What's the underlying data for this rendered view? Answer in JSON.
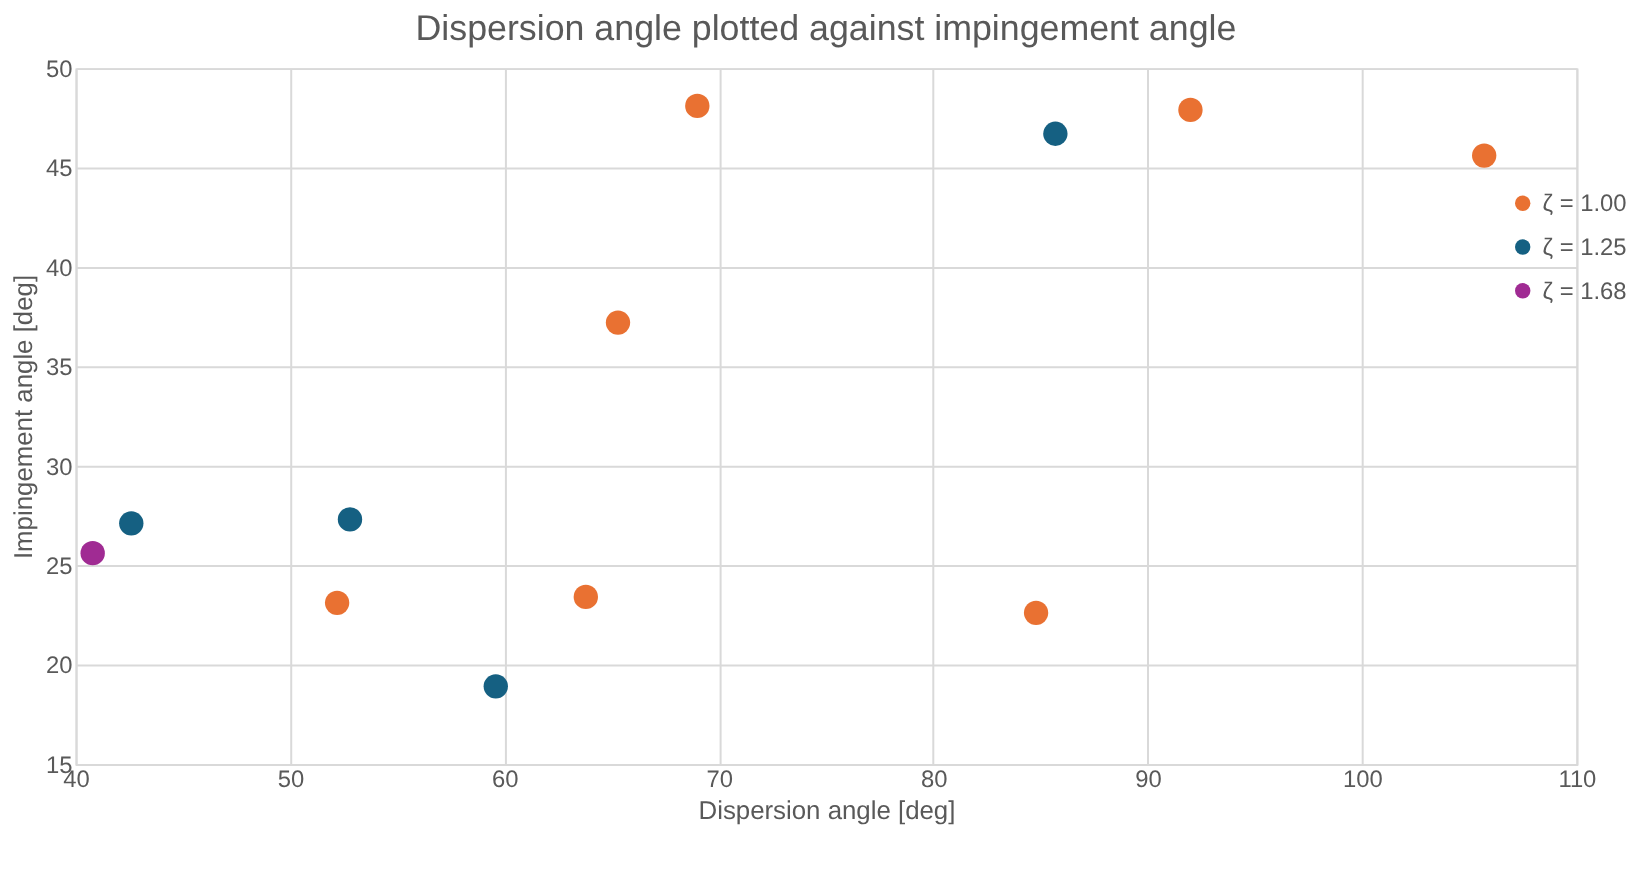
{
  "chart_data": {
    "type": "scatter",
    "title": "Dispersion angle plotted against impingement angle",
    "xlabel": "Dispersion angle [deg]",
    "ylabel": "Impingement angle [deg]",
    "series": [
      {
        "name": "ζ = 1.00",
        "color": "#e97132",
        "x": [
          52.2,
          63.8,
          65.3,
          69.0,
          84.8,
          92.0,
          105.7
        ],
        "values": [
          23.1,
          23.4,
          37.2,
          48.1,
          22.6,
          47.9,
          45.6
        ]
      },
      {
        "name": "ζ = 1.25",
        "color": "#156082",
        "x": [
          42.6,
          52.8,
          59.6,
          85.7
        ],
        "values": [
          27.1,
          27.3,
          18.9,
          46.7
        ]
      },
      {
        "name": "ζ = 1.68",
        "color": "#a02b93",
        "x": [
          40.8
        ],
        "values": [
          25.6
        ]
      }
    ],
    "xlim": [
      40,
      110
    ],
    "xticks": [
      40,
      50,
      60,
      70,
      80,
      90,
      100,
      110
    ],
    "ylim": [
      15,
      50
    ],
    "yticks": [
      15,
      20,
      25,
      30,
      35,
      40,
      45,
      50
    ],
    "grid": true,
    "legend": "right",
    "marker": "circle"
  }
}
